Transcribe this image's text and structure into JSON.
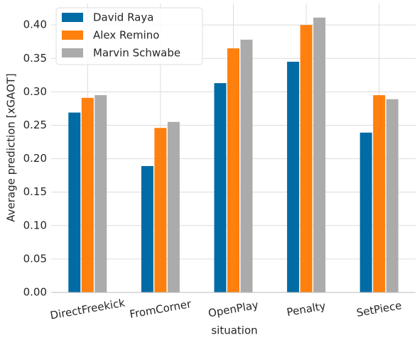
{
  "chart_data": {
    "type": "bar",
    "categories": [
      "DirectFreekick",
      "FromCorner",
      "OpenPlay",
      "Penalty",
      "SetPiece"
    ],
    "series": [
      {
        "name": "David Raya",
        "color": "#006ba4",
        "values": [
          0.269,
          0.189,
          0.313,
          0.345,
          0.239
        ]
      },
      {
        "name": "Alex Remino",
        "color": "#ff800e",
        "values": [
          0.291,
          0.246,
          0.365,
          0.4,
          0.295
        ]
      },
      {
        "name": "Marvin Schwabe",
        "color": "#ababab",
        "values": [
          0.295,
          0.255,
          0.378,
          0.411,
          0.289
        ]
      }
    ],
    "xlabel": "situation",
    "ylabel": "Average prediction [xGAOT]",
    "ylim": [
      0,
      0.432
    ],
    "yticks": [
      {
        "value": 0,
        "label": "0.00"
      },
      {
        "value": 0.05,
        "label": "0.05"
      },
      {
        "value": 0.1,
        "label": "0.10"
      },
      {
        "value": 0.15,
        "label": "0.15"
      },
      {
        "value": 0.2,
        "label": "0.20"
      },
      {
        "value": 0.25,
        "label": "0.25"
      },
      {
        "value": 0.3,
        "label": "0.30"
      },
      {
        "value": 0.35,
        "label": "0.35"
      },
      {
        "value": 0.4,
        "label": "0.40"
      }
    ],
    "grid": true,
    "legend": "upper-left"
  }
}
